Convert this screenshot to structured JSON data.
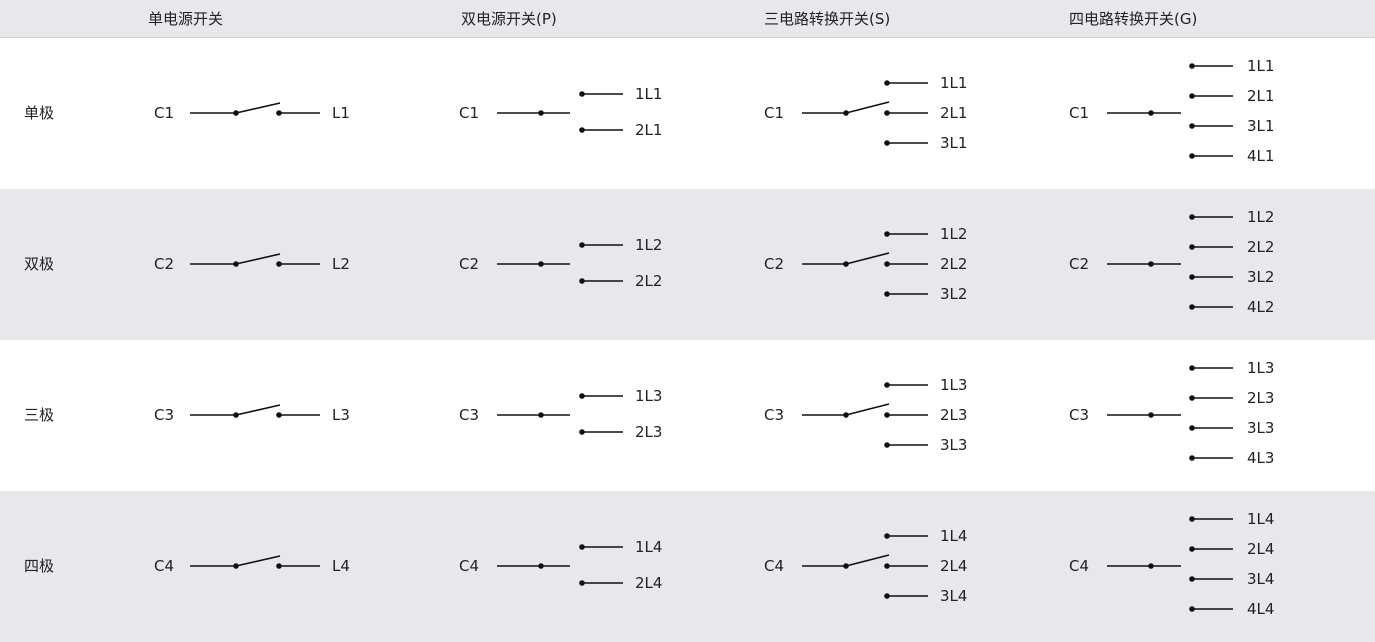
{
  "headers": [
    "单电源开关",
    "双电源开关(P)",
    "三电路转换开关(S)",
    "四电路转换开关(G)"
  ],
  "rows": [
    {
      "label": "单极",
      "common": "C1",
      "single_out": "L1",
      "dual_out": [
        "1L1",
        "2L1"
      ],
      "triple_out": [
        "1L1",
        "2L1",
        "3L1"
      ],
      "quad_out": [
        "1L1",
        "2L1",
        "3L1",
        "4L1"
      ]
    },
    {
      "label": "双极",
      "common": "C2",
      "single_out": "L2",
      "dual_out": [
        "1L2",
        "2L2"
      ],
      "triple_out": [
        "1L2",
        "2L2",
        "3L2"
      ],
      "quad_out": [
        "1L2",
        "2L2",
        "3L2",
        "4L2"
      ]
    },
    {
      "label": "三极",
      "common": "C3",
      "single_out": "L3",
      "dual_out": [
        "1L3",
        "2L3"
      ],
      "triple_out": [
        "1L3",
        "2L3",
        "3L3"
      ],
      "quad_out": [
        "1L3",
        "2L3",
        "3L3",
        "4L3"
      ]
    },
    {
      "label": "四极",
      "common": "C4",
      "single_out": "L4",
      "dual_out": [
        "1L4",
        "2L4"
      ],
      "triple_out": [
        "1L4",
        "2L4",
        "3L4"
      ],
      "quad_out": [
        "1L4",
        "2L4",
        "3L4",
        "4L4"
      ]
    }
  ],
  "colors": {
    "shade": "#e8e8ec",
    "line": "#111111",
    "text": "#222222"
  }
}
